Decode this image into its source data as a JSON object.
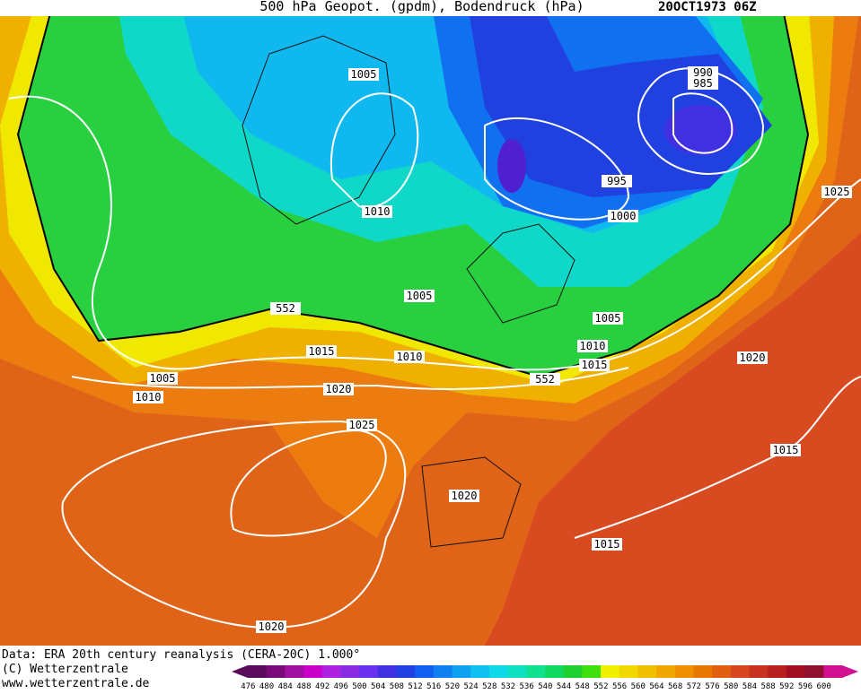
{
  "header": {
    "title": "500 hPa Geopot. (gpdm), Bodendruck (hPa)",
    "date": "20OCT1973 06Z"
  },
  "footer": {
    "source": "Data: ERA 20th century reanalysis (CERA-20C) 1.000°",
    "copyright": "(C) Wetterzentrale",
    "url": "www.wetterzentrale.de"
  },
  "map": {
    "contour_labels": [
      1005,
      990,
      985,
      995,
      1025,
      1010,
      1000,
      1005,
      552,
      1005,
      1010,
      1015,
      1010,
      1015,
      552,
      1020,
      1005,
      1010,
      1020,
      1025,
      1015,
      1020,
      1015,
      1020
    ]
  },
  "colorbar": {
    "values": [
      476,
      480,
      484,
      488,
      492,
      496,
      500,
      504,
      508,
      512,
      516,
      520,
      524,
      528,
      532,
      536,
      540,
      544,
      548,
      552,
      556,
      560,
      564,
      568,
      572,
      576,
      580,
      584,
      588,
      592,
      596,
      600
    ],
    "colors": [
      "#5a0a5a",
      "#7a0a7a",
      "#a010a0",
      "#c800c8",
      "#b020e0",
      "#8a2be2",
      "#6a30f0",
      "#4030e0",
      "#2040e0",
      "#1060f0",
      "#1080f0",
      "#10a0f0",
      "#10c0f0",
      "#10d8e8",
      "#10e0c0",
      "#10e090",
      "#10d860",
      "#20d030",
      "#40e010",
      "#f0f000",
      "#f0d800",
      "#f0c000",
      "#f0a800",
      "#f09000",
      "#e87800",
      "#e06010",
      "#d84820",
      "#c83020",
      "#b82020",
      "#a01020",
      "#901030",
      "#d01090"
    ]
  }
}
